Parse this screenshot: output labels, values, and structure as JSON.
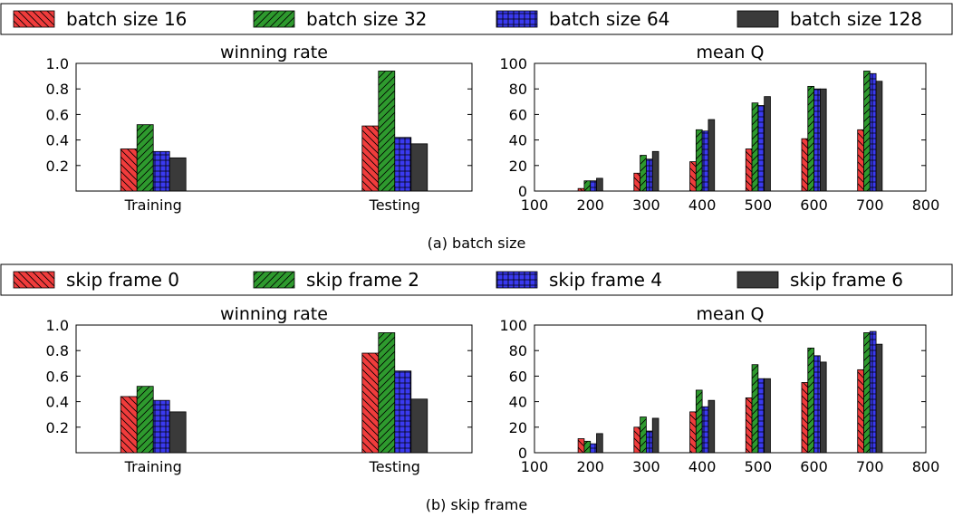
{
  "figure": {
    "panels": [
      {
        "caption": "(a) batch size",
        "legend": [
          "batch size 16",
          "batch size 32",
          "batch size 64",
          "batch size 128"
        ]
      },
      {
        "caption": "(b) skip frame",
        "legend": [
          "skip frame 0",
          "skip frame 2",
          "skip frame 4",
          "skip frame 6"
        ]
      }
    ]
  },
  "series_style": {
    "colors": [
      "#f03c3c",
      "#2e9a2e",
      "#3a3af0",
      "#3a3a3a"
    ],
    "hatches": [
      "backslash",
      "slash",
      "grid",
      "none"
    ]
  },
  "chart_data": [
    {
      "type": "bar",
      "title": "winning rate",
      "categories": [
        "Training",
        "Testing"
      ],
      "ylim": [
        0,
        1.0
      ],
      "yticks": [
        0.2,
        0.4,
        0.6,
        0.8,
        1.0
      ],
      "series": [
        {
          "name": "batch size 16",
          "values": [
            0.33,
            0.51
          ]
        },
        {
          "name": "batch size 32",
          "values": [
            0.52,
            0.94
          ]
        },
        {
          "name": "batch size 64",
          "values": [
            0.31,
            0.42
          ]
        },
        {
          "name": "batch size 128",
          "values": [
            0.26,
            0.37
          ]
        }
      ]
    },
    {
      "type": "bar",
      "title": "mean Q",
      "x": [
        200,
        300,
        400,
        500,
        600,
        700
      ],
      "xlim": [
        100,
        800
      ],
      "xticks": [
        100,
        200,
        300,
        400,
        500,
        600,
        700,
        800
      ],
      "ylim": [
        0,
        100
      ],
      "yticks": [
        0,
        20,
        40,
        60,
        80,
        100
      ],
      "series": [
        {
          "name": "batch size 16",
          "values": [
            2,
            14,
            23,
            33,
            41,
            48
          ]
        },
        {
          "name": "batch size 32",
          "values": [
            8,
            28,
            48,
            69,
            82,
            94
          ]
        },
        {
          "name": "batch size 64",
          "values": [
            8,
            25,
            47,
            67,
            80,
            92
          ]
        },
        {
          "name": "batch size 128",
          "values": [
            10,
            31,
            56,
            74,
            80,
            86
          ]
        }
      ]
    },
    {
      "type": "bar",
      "title": "winning rate",
      "categories": [
        "Training",
        "Testing"
      ],
      "ylim": [
        0,
        1.0
      ],
      "yticks": [
        0.2,
        0.4,
        0.6,
        0.8,
        1.0
      ],
      "series": [
        {
          "name": "skip frame 0",
          "values": [
            0.44,
            0.78
          ]
        },
        {
          "name": "skip frame 2",
          "values": [
            0.52,
            0.94
          ]
        },
        {
          "name": "skip frame 4",
          "values": [
            0.41,
            0.64
          ]
        },
        {
          "name": "skip frame 6",
          "values": [
            0.32,
            0.42
          ]
        }
      ]
    },
    {
      "type": "bar",
      "title": "mean Q",
      "x": [
        200,
        300,
        400,
        500,
        600,
        700
      ],
      "xlim": [
        100,
        800
      ],
      "xticks": [
        100,
        200,
        300,
        400,
        500,
        600,
        700,
        800
      ],
      "ylim": [
        0,
        100
      ],
      "yticks": [
        0,
        20,
        40,
        60,
        80,
        100
      ],
      "series": [
        {
          "name": "skip frame 0",
          "values": [
            11,
            20,
            32,
            43,
            55,
            65
          ]
        },
        {
          "name": "skip frame 2",
          "values": [
            9,
            28,
            49,
            69,
            82,
            94
          ]
        },
        {
          "name": "skip frame 4",
          "values": [
            7,
            17,
            36,
            58,
            76,
            95
          ]
        },
        {
          "name": "skip frame 6",
          "values": [
            15,
            27,
            41,
            58,
            71,
            85
          ]
        }
      ]
    }
  ]
}
